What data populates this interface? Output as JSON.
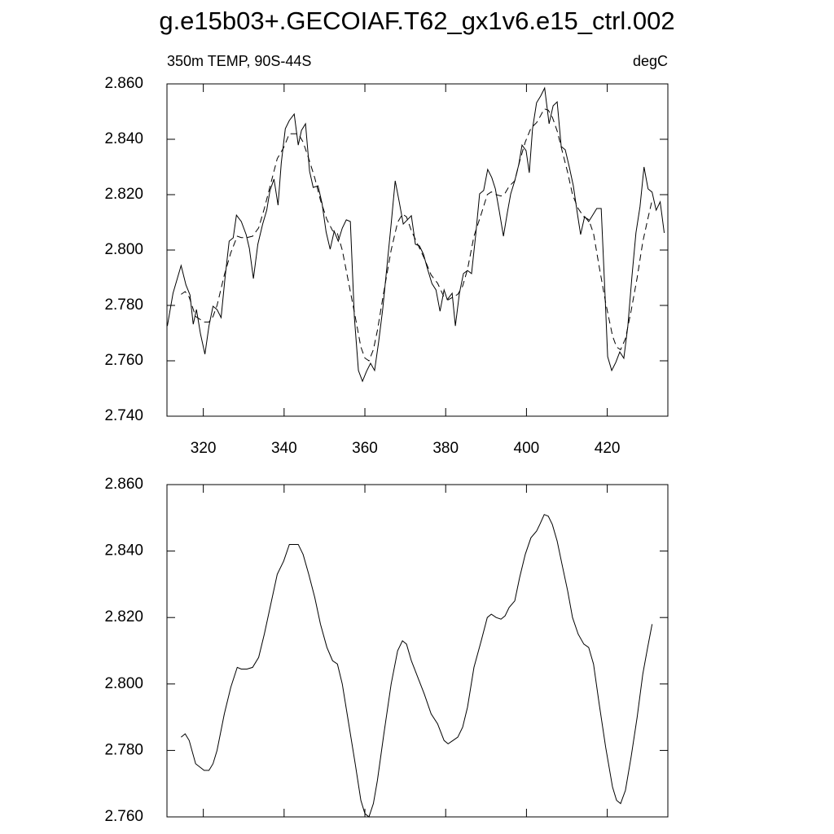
{
  "chart_data": [
    {
      "type": "line",
      "title": "g.e15b03+.GECOIAF.T62_gx1v6.e15_ctrl.002",
      "left_string": "350m TEMP, 90S-44S",
      "right_string": "degC",
      "xlim": [
        311,
        435
      ],
      "xticks": [
        320,
        340,
        360,
        380,
        400,
        420
      ],
      "ylim": [
        2.74,
        2.86
      ],
      "yticks": [
        {
          "value": 2.74,
          "label": "2.740"
        },
        {
          "value": 2.76,
          "label": "2.760"
        },
        {
          "value": 2.78,
          "label": "2.780"
        },
        {
          "value": 2.8,
          "label": "2.800"
        },
        {
          "value": 2.82,
          "label": "2.820"
        },
        {
          "value": 2.84,
          "label": "2.840"
        },
        {
          "value": 2.86,
          "label": "2.860"
        }
      ],
      "series": [
        {
          "color": "#000000",
          "line_style": "solid",
          "x": [
            311.1,
            312.5,
            314.5,
            315.7,
            316.7,
            317.5,
            318.3,
            319.3,
            320.4,
            321.4,
            322.4,
            323.4,
            324.4,
            325.4,
            326.4,
            327.4,
            328.2,
            329.4,
            330.6,
            331.4,
            332.4,
            333.5,
            334.7,
            335.7,
            336.5,
            337.5,
            338.5,
            339.3,
            340.3,
            341.3,
            342.5,
            343.5,
            344.3,
            345.3,
            346.3,
            347.2,
            348.4,
            349.4,
            350.4,
            351.4,
            352.4,
            353.4,
            354.4,
            355.4,
            356.4,
            357.4,
            358.4,
            359.4,
            360.4,
            361.4,
            362.4,
            363.4,
            364.4,
            365.4,
            366.5,
            367.5,
            368.5,
            369.5,
            370.5,
            371.5,
            372.5,
            373.5,
            374.5,
            375.5,
            376.6,
            377.6,
            378.6,
            379.6,
            380.4,
            381.6,
            382.4,
            383.4,
            384.4,
            385.4,
            386.4,
            387.4,
            388.4,
            389.4,
            390.4,
            391.4,
            392.3,
            393.3,
            394.3,
            395.3,
            396.1,
            397.1,
            398.1,
            398.9,
            399.9,
            400.7,
            401.5,
            402.5,
            403.5,
            404.5,
            405.6,
            406.6,
            407.6,
            408.6,
            409.6,
            410.6,
            411.6,
            412.6,
            413.4,
            414.4,
            415.4,
            416.4,
            417.4,
            418.5,
            419.5,
            420.1,
            421.1,
            422.1,
            423.1,
            424.1,
            425.1,
            426.1,
            427.1,
            428.1,
            429.1,
            430.1,
            431.1,
            432.1,
            433.1,
            434.1
          ],
          "values": [
            2.7726,
            2.7844,
            2.7944,
            2.7874,
            2.7838,
            2.7732,
            2.7785,
            2.7697,
            2.7624,
            2.7726,
            2.7797,
            2.7785,
            2.7756,
            2.7903,
            2.8032,
            2.8044,
            2.8126,
            2.8103,
            2.8056,
            2.8006,
            2.7897,
            2.8021,
            2.8094,
            2.8144,
            2.8215,
            2.8256,
            2.8162,
            2.8315,
            2.8438,
            2.8468,
            2.8491,
            2.8379,
            2.8432,
            2.8456,
            2.8285,
            2.8226,
            2.8232,
            2.8168,
            2.8065,
            2.8003,
            2.8068,
            2.8032,
            2.8079,
            2.8109,
            2.8103,
            2.7756,
            2.7565,
            2.7526,
            2.7562,
            2.7591,
            2.7565,
            2.7668,
            2.7785,
            2.7932,
            2.8094,
            2.825,
            2.8174,
            2.8094,
            2.8109,
            2.8124,
            2.8021,
            2.8015,
            2.7985,
            2.7932,
            2.7879,
            2.7856,
            2.7779,
            2.7856,
            2.7821,
            2.7844,
            2.7726,
            2.7844,
            2.7915,
            2.7926,
            2.7915,
            2.805,
            2.8203,
            2.8215,
            2.8291,
            2.8262,
            2.8221,
            2.8138,
            2.805,
            2.8138,
            2.8203,
            2.825,
            2.8309,
            2.8379,
            2.8359,
            2.8279,
            2.8438,
            2.8532,
            2.8556,
            2.8585,
            2.8456,
            2.8521,
            2.8535,
            2.8374,
            2.8362,
            2.83,
            2.8232,
            2.8132,
            2.8056,
            2.8121,
            2.8103,
            2.8126,
            2.815,
            2.815,
            2.7821,
            2.7615,
            2.7565,
            2.7594,
            2.7632,
            2.7609,
            2.7726,
            2.7903,
            2.8062,
            2.8156,
            2.83,
            2.8221,
            2.8209,
            2.8144,
            2.8174,
            2.8062
          ]
        },
        {
          "color": "#000000",
          "line_style": "dashed",
          "x": [
            314.5,
            315.5,
            316.5,
            318.1,
            320.2,
            321.4,
            322.4,
            323.4,
            325.2,
            326.8,
            328.4,
            329.4,
            330.8,
            332.2,
            333.7,
            335.1,
            336.7,
            338.3,
            339.9,
            341.3,
            342.7,
            343.5,
            344.7,
            346.1,
            347.6,
            349.0,
            350.6,
            352.0,
            353.2,
            354.4,
            356.0,
            357.6,
            359.0,
            360.0,
            361.0,
            362.1,
            363.1,
            364.7,
            366.5,
            368.1,
            369.3,
            370.3,
            371.5,
            373.1,
            374.7,
            376.4,
            378.0,
            379.6,
            380.6,
            381.8,
            383.0,
            384.2,
            385.4,
            387.0,
            388.8,
            390.3,
            391.3,
            392.5,
            393.7,
            394.7,
            395.7,
            397.1,
            398.3,
            399.7,
            401.1,
            402.5,
            403.3,
            404.4,
            405.4,
            406.4,
            407.6,
            408.8,
            410.2,
            411.4,
            412.8,
            414.2,
            415.4,
            416.6,
            418.0,
            419.6,
            421.3,
            422.3,
            423.3,
            424.5,
            425.9,
            427.4,
            428.8,
            430.0,
            431.1
          ],
          "values": [
            2.784,
            2.785,
            2.783,
            2.776,
            2.774,
            2.774,
            2.776,
            2.78,
            2.791,
            2.799,
            2.805,
            2.8045,
            2.8045,
            2.805,
            2.808,
            2.815,
            2.824,
            2.833,
            2.837,
            2.842,
            2.842,
            2.842,
            2.839,
            2.833,
            2.826,
            2.818,
            2.811,
            2.807,
            2.806,
            2.8,
            2.788,
            2.776,
            2.765,
            2.761,
            2.76,
            2.764,
            2.771,
            2.785,
            2.8,
            2.81,
            2.813,
            2.812,
            2.807,
            2.802,
            2.797,
            2.791,
            2.788,
            2.783,
            2.782,
            2.783,
            2.784,
            2.787,
            2.793,
            2.805,
            2.813,
            2.82,
            2.821,
            2.82,
            2.8195,
            2.8205,
            2.823,
            2.825,
            2.832,
            2.839,
            2.844,
            2.846,
            2.848,
            2.851,
            2.8505,
            2.848,
            2.843,
            2.836,
            2.828,
            2.82,
            2.815,
            2.812,
            2.811,
            2.806,
            2.794,
            2.781,
            2.769,
            2.765,
            2.764,
            2.768,
            2.778,
            2.79,
            2.803,
            2.811,
            2.818
          ]
        }
      ]
    },
    {
      "type": "line",
      "xlim": [
        311,
        435
      ],
      "xticks": [
        320,
        340,
        360,
        380,
        400,
        420
      ],
      "ylim": [
        2.76,
        2.86
      ],
      "yticks": [
        {
          "value": 2.76,
          "label": "2.760"
        },
        {
          "value": 2.78,
          "label": "2.780"
        },
        {
          "value": 2.8,
          "label": "2.800"
        },
        {
          "value": 2.82,
          "label": "2.820"
        },
        {
          "value": 2.84,
          "label": "2.840"
        },
        {
          "value": 2.86,
          "label": "2.860"
        }
      ],
      "series": [
        {
          "color": "#000000",
          "line_style": "solid",
          "x": [
            314.5,
            315.5,
            316.5,
            318.1,
            320.2,
            321.4,
            322.4,
            323.4,
            325.2,
            326.8,
            328.4,
            329.4,
            330.8,
            332.2,
            333.7,
            335.1,
            336.7,
            338.3,
            339.9,
            341.3,
            342.7,
            343.5,
            344.7,
            346.1,
            347.6,
            349.0,
            350.6,
            352.0,
            353.2,
            354.4,
            356.0,
            357.6,
            359.0,
            360.0,
            361.0,
            362.1,
            363.1,
            364.7,
            366.5,
            368.1,
            369.3,
            370.3,
            371.5,
            373.1,
            374.7,
            376.4,
            378.0,
            379.6,
            380.6,
            381.8,
            383.0,
            384.2,
            385.4,
            387.0,
            388.8,
            390.3,
            391.3,
            392.5,
            393.7,
            394.7,
            395.7,
            397.1,
            398.3,
            399.7,
            401.1,
            402.5,
            403.3,
            404.4,
            405.4,
            406.4,
            407.6,
            408.8,
            410.2,
            411.4,
            412.8,
            414.2,
            415.4,
            416.6,
            418.0,
            419.6,
            421.3,
            422.3,
            423.3,
            424.5,
            425.9,
            427.4,
            428.8,
            430.0,
            431.1
          ],
          "values": [
            2.784,
            2.785,
            2.783,
            2.776,
            2.774,
            2.774,
            2.776,
            2.78,
            2.791,
            2.799,
            2.805,
            2.8045,
            2.8045,
            2.805,
            2.808,
            2.815,
            2.824,
            2.833,
            2.837,
            2.842,
            2.842,
            2.842,
            2.839,
            2.833,
            2.826,
            2.818,
            2.811,
            2.807,
            2.806,
            2.8,
            2.788,
            2.776,
            2.765,
            2.761,
            2.76,
            2.764,
            2.771,
            2.785,
            2.8,
            2.81,
            2.813,
            2.812,
            2.807,
            2.802,
            2.797,
            2.791,
            2.788,
            2.783,
            2.782,
            2.783,
            2.784,
            2.787,
            2.793,
            2.805,
            2.813,
            2.82,
            2.821,
            2.82,
            2.8195,
            2.8205,
            2.823,
            2.825,
            2.832,
            2.839,
            2.844,
            2.846,
            2.848,
            2.851,
            2.8505,
            2.848,
            2.843,
            2.836,
            2.828,
            2.82,
            2.815,
            2.812,
            2.811,
            2.806,
            2.794,
            2.781,
            2.769,
            2.765,
            2.764,
            2.768,
            2.778,
            2.79,
            2.803,
            2.811,
            2.818
          ]
        }
      ]
    }
  ]
}
